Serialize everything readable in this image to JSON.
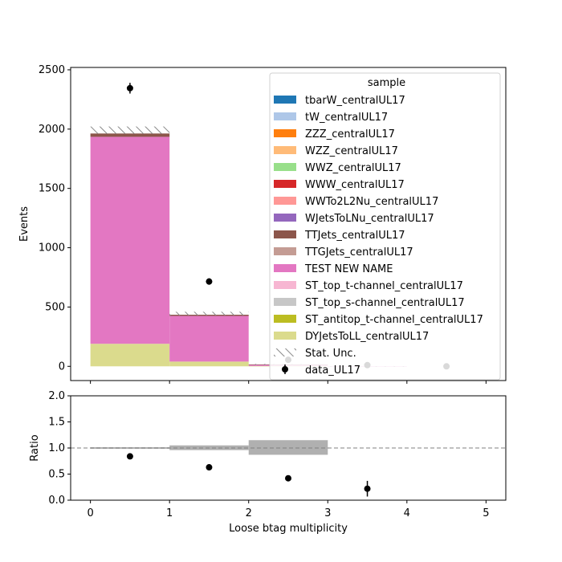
{
  "chart_data": [
    {
      "type": "bar",
      "stacked": true,
      "xlabel": "",
      "ylabel": "Events",
      "xlim": [
        -0.25,
        5.25
      ],
      "ylim": [
        -120,
        2520
      ],
      "yticks": [
        0,
        500,
        1000,
        1500,
        2000,
        2500
      ],
      "xticks": [
        0,
        1,
        2,
        3,
        4,
        5
      ],
      "bins": [
        [
          0,
          1
        ],
        [
          1,
          2
        ],
        [
          2,
          3
        ],
        [
          3,
          4
        ],
        [
          4,
          5
        ]
      ],
      "legend": {
        "title": "sample",
        "placement": "upper right"
      },
      "series": [
        {
          "name": "DYJetsToLL_centralUL17",
          "color": "#dbdb8d",
          "values": [
            190,
            40,
            3,
            0,
            0
          ]
        },
        {
          "name": "ST_antitop_t-channel_centralUL17",
          "color": "#bcbd22",
          "values": [
            0,
            0,
            0,
            0,
            0
          ]
        },
        {
          "name": "ST_top_s-channel_centralUL17",
          "color": "#c7c7c7",
          "values": [
            0,
            0,
            0,
            0,
            0
          ]
        },
        {
          "name": "ST_top_t-channel_centralUL17",
          "color": "#f7b6d2",
          "values": [
            0,
            0,
            0,
            0,
            0
          ]
        },
        {
          "name": "TEST NEW NAME",
          "color": "#e377c2",
          "values": [
            1745,
            385,
            12,
            1,
            0
          ]
        },
        {
          "name": "TTGJets_centralUL17",
          "color": "#c49c94",
          "values": [
            0,
            0,
            0,
            0,
            0
          ]
        },
        {
          "name": "TTJets_centralUL17",
          "color": "#8c564b",
          "values": [
            28,
            10,
            1,
            0,
            0
          ]
        },
        {
          "name": "WJetsToLNu_centralUL17",
          "color": "#9467bd",
          "values": [
            0,
            0,
            0,
            0,
            0
          ]
        },
        {
          "name": "WWTo2L2Nu_centralUL17",
          "color": "#ff9896",
          "values": [
            0,
            0,
            0,
            0,
            0
          ]
        },
        {
          "name": "WWW_centralUL17",
          "color": "#d62728",
          "values": [
            0,
            0,
            0,
            0,
            0
          ]
        },
        {
          "name": "WWZ_centralUL17",
          "color": "#98df8a",
          "values": [
            0,
            0,
            0,
            0,
            0
          ]
        },
        {
          "name": "WZZ_centralUL17",
          "color": "#ffbb78",
          "values": [
            0,
            0,
            0,
            0,
            0
          ]
        },
        {
          "name": "ZZZ_centralUL17",
          "color": "#ff7f0e",
          "values": [
            0,
            0,
            0,
            0,
            0
          ]
        },
        {
          "name": "tW_centralUL17",
          "color": "#aec7e8",
          "values": [
            0,
            0,
            0,
            0,
            0
          ]
        },
        {
          "name": "tbarW_centralUL17",
          "color": "#1f77b4",
          "values": [
            0,
            0,
            0,
            0,
            0
          ]
        }
      ],
      "stat_unc": {
        "name": "Stat. Unc.",
        "down": [
          1960,
          430,
          12,
          0,
          0
        ],
        "up": [
          2022,
          460,
          20,
          2,
          0
        ]
      },
      "data": {
        "name": "data_UL17",
        "x": [
          0.5,
          1.5,
          2.5,
          3.5,
          4.5
        ],
        "y": [
          2345,
          715,
          55,
          10,
          0
        ],
        "yerr": [
          45,
          27,
          8,
          3,
          0
        ]
      }
    },
    {
      "type": "scatter",
      "xlabel": "Loose btag multiplicity",
      "ylabel": "Ratio",
      "xlim": [
        -0.25,
        5.25
      ],
      "ylim": [
        0,
        2
      ],
      "yticks": [
        "0.0",
        "0.5",
        "1.0",
        "1.5",
        "2.0"
      ],
      "xticks": [
        "0",
        "1",
        "2",
        "3",
        "4",
        "5"
      ],
      "reference_line": 1.0,
      "unc_band": {
        "down": [
          0.985,
          0.96,
          0.87,
          1.0,
          1.0
        ],
        "up": [
          1.015,
          1.05,
          1.15,
          1.0,
          1.0
        ]
      },
      "points": {
        "x": [
          0.5,
          1.5,
          2.5,
          3.5
        ],
        "y": [
          0.84,
          0.63,
          0.42,
          0.22
        ],
        "yerr": [
          0.02,
          0.03,
          0.04,
          0.15
        ]
      }
    }
  ]
}
